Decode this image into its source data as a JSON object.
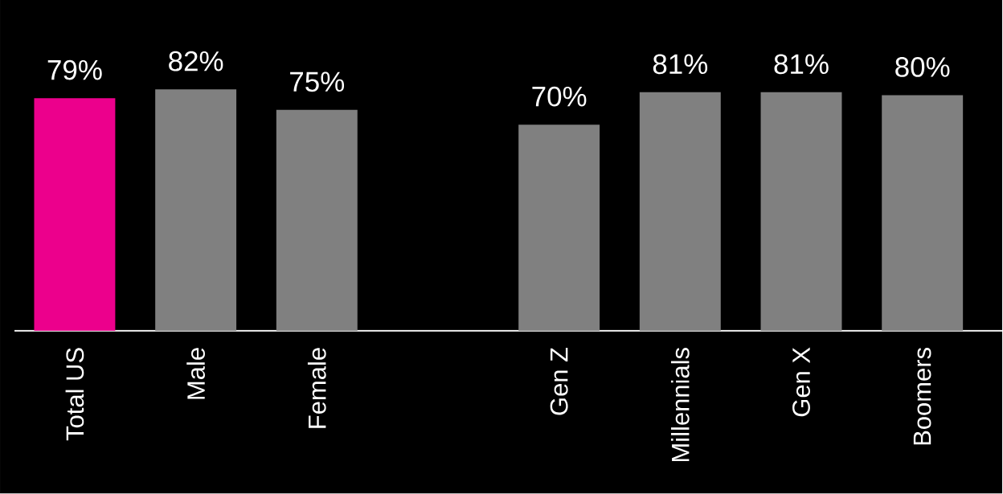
{
  "chart_data": {
    "type": "bar",
    "categories": [
      "Total US",
      "Male",
      "Female",
      null,
      "Gen Z",
      "Millennials",
      "Gen X",
      "Boomers"
    ],
    "values": [
      79,
      82,
      75,
      null,
      70,
      81,
      81,
      80
    ],
    "colors": [
      "#ec008c",
      "#808080",
      "#808080",
      null,
      "#808080",
      "#808080",
      "#808080",
      "#808080"
    ],
    "value_labels": [
      "79%",
      "82%",
      "75%",
      null,
      "70%",
      "81%",
      "81%",
      "80%"
    ],
    "tick_labels": "x"
  }
}
